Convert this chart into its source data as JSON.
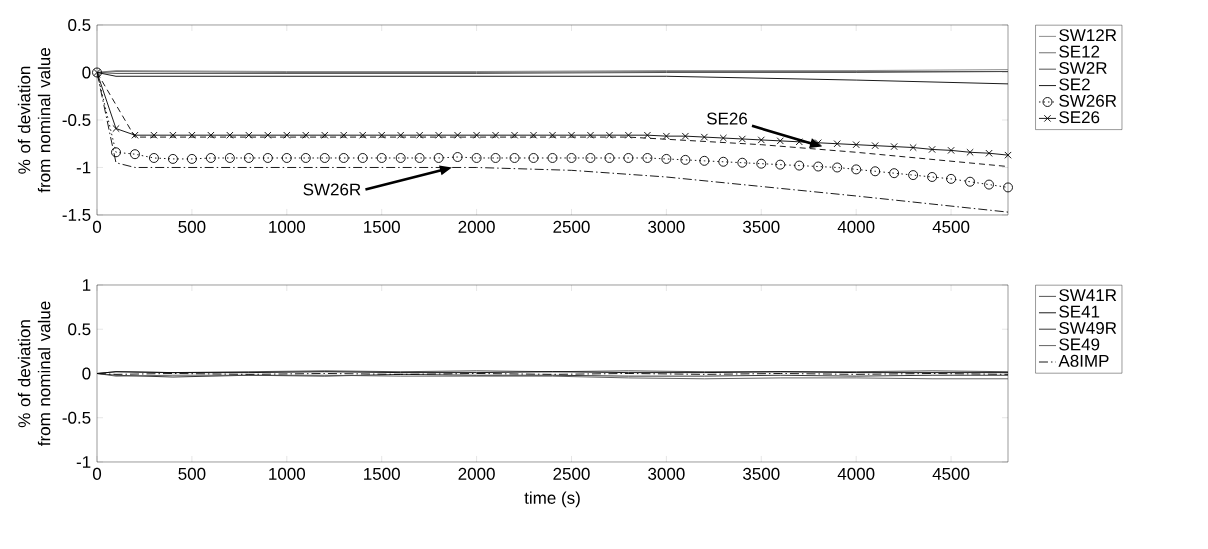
{
  "chart_data": [
    {
      "type": "line",
      "ylabel": "% of deviation from nominal value",
      "xlim": [
        0,
        4800
      ],
      "ylim": [
        -1.5,
        0.5
      ],
      "xticks": [
        0,
        500,
        1000,
        1500,
        2000,
        2500,
        3000,
        3500,
        4000,
        4500
      ],
      "yticks": [
        -1.5,
        -1,
        -0.5,
        0,
        0.5
      ],
      "legend": "right",
      "grid": false,
      "annotations": [
        "SW26R",
        "SE26"
      ],
      "series": [
        {
          "name": "SW12R",
          "color": "#808080",
          "line_style": "solid",
          "marker": "none",
          "x": [
            0,
            100,
            1000,
            2000,
            3000,
            4000,
            4800
          ],
          "values": [
            0,
            0.02,
            0.01,
            0.01,
            0.02,
            0.02,
            0.03
          ]
        },
        {
          "name": "SE12",
          "color": "#606060",
          "line_style": "solid",
          "marker": "none",
          "x": [
            0,
            100,
            1000,
            2000,
            3000,
            4000,
            4800
          ],
          "values": [
            0,
            0.01,
            0,
            0,
            0.01,
            0.01,
            0.01
          ]
        },
        {
          "name": "SW2R",
          "color": "#404040",
          "line_style": "solid",
          "marker": "none",
          "x": [
            0,
            100,
            1000,
            2000,
            3000,
            4000,
            4800
          ],
          "values": [
            0,
            -0.01,
            -0.01,
            -0.01,
            0,
            0,
            0.01
          ]
        },
        {
          "name": "SE2",
          "color": "#000000",
          "line_style": "solid",
          "marker": "none",
          "x": [
            0,
            100,
            1000,
            2000,
            3000,
            4000,
            4800
          ],
          "values": [
            0,
            -0.04,
            -0.04,
            -0.04,
            -0.04,
            -0.08,
            -0.12
          ]
        },
        {
          "name": "SW26R",
          "color": "#000000",
          "line_style": "dotted",
          "marker": "circle",
          "x": [
            0,
            100,
            200,
            300,
            400,
            500,
            600,
            700,
            800,
            900,
            1000,
            1100,
            1200,
            1300,
            1400,
            1500,
            1600,
            1700,
            1800,
            1900,
            2000,
            2100,
            2200,
            2300,
            2400,
            2500,
            2600,
            2700,
            2800,
            2900,
            3000,
            3100,
            3200,
            3300,
            3400,
            3500,
            3600,
            3700,
            3800,
            3900,
            4000,
            4100,
            4200,
            4300,
            4400,
            4500,
            4600,
            4700,
            4800
          ],
          "values": [
            0,
            -0.84,
            -0.86,
            -0.9,
            -0.91,
            -0.91,
            -0.9,
            -0.9,
            -0.9,
            -0.9,
            -0.9,
            -0.9,
            -0.9,
            -0.9,
            -0.9,
            -0.9,
            -0.9,
            -0.9,
            -0.9,
            -0.89,
            -0.9,
            -0.9,
            -0.9,
            -0.9,
            -0.9,
            -0.9,
            -0.9,
            -0.9,
            -0.9,
            -0.9,
            -0.91,
            -0.92,
            -0.93,
            -0.94,
            -0.95,
            -0.96,
            -0.97,
            -0.98,
            -0.99,
            -1.0,
            -1.02,
            -1.04,
            -1.06,
            -1.08,
            -1.1,
            -1.12,
            -1.15,
            -1.18,
            -1.21
          ]
        },
        {
          "name": "SE26",
          "color": "#000000",
          "line_style": "solid",
          "marker": "cross",
          "x": [
            0,
            100,
            200,
            300,
            400,
            500,
            600,
            700,
            800,
            900,
            1000,
            1100,
            1200,
            1300,
            1400,
            1500,
            1600,
            1700,
            1800,
            1900,
            2000,
            2100,
            2200,
            2300,
            2400,
            2500,
            2600,
            2700,
            2800,
            2900,
            3000,
            3100,
            3200,
            3300,
            3400,
            3500,
            3600,
            3700,
            3800,
            3900,
            4000,
            4100,
            4200,
            4300,
            4400,
            4500,
            4600,
            4700,
            4800
          ],
          "values": [
            0,
            -0.59,
            -0.66,
            -0.66,
            -0.66,
            -0.66,
            -0.66,
            -0.66,
            -0.66,
            -0.66,
            -0.66,
            -0.66,
            -0.66,
            -0.66,
            -0.66,
            -0.66,
            -0.66,
            -0.66,
            -0.66,
            -0.66,
            -0.66,
            -0.66,
            -0.66,
            -0.66,
            -0.66,
            -0.66,
            -0.66,
            -0.66,
            -0.66,
            -0.66,
            -0.67,
            -0.67,
            -0.68,
            -0.69,
            -0.7,
            -0.71,
            -0.72,
            -0.73,
            -0.74,
            -0.75,
            -0.76,
            -0.77,
            -0.78,
            -0.79,
            -0.81,
            -0.82,
            -0.84,
            -0.85,
            -0.87
          ]
        },
        {
          "color": "#000000",
          "line_style": "dashed",
          "marker": "none",
          "x": [
            0,
            200,
            1000,
            2000,
            2800,
            3500,
            4000,
            4800
          ],
          "values": [
            0,
            -0.68,
            -0.68,
            -0.68,
            -0.68,
            -0.76,
            -0.84,
            -0.99
          ]
        },
        {
          "color": "#000000",
          "line_style": "dashdot",
          "marker": "none",
          "x": [
            0,
            100,
            200,
            1000,
            2000,
            2500,
            3000,
            3500,
            4000,
            4800
          ],
          "values": [
            0,
            -0.95,
            -1.0,
            -1.0,
            -1.0,
            -1.03,
            -1.1,
            -1.2,
            -1.3,
            -1.47
          ]
        }
      ]
    },
    {
      "type": "line",
      "ylabel": "% of deviation from nominal value",
      "xlabel": "time (s)",
      "xlim": [
        0,
        4800
      ],
      "ylim": [
        -1,
        1
      ],
      "xticks": [
        0,
        500,
        1000,
        1500,
        2000,
        2500,
        3000,
        3500,
        4000,
        4500
      ],
      "yticks": [
        -1,
        -0.5,
        0,
        0.5,
        1
      ],
      "legend": "right",
      "grid": false,
      "series": [
        {
          "name": "SW41R",
          "color": "#404040",
          "line_style": "solid",
          "marker": "none",
          "x": [
            0,
            100,
            400,
            800,
            1200,
            1600,
            2000,
            2400,
            2800,
            3200,
            3600,
            4000,
            4400,
            4800
          ],
          "values": [
            0,
            0.02,
            0.01,
            0.02,
            0.03,
            0.02,
            0.03,
            0.02,
            0.03,
            0.02,
            0.02,
            0.02,
            0.03,
            0.02
          ]
        },
        {
          "name": "SE41",
          "color": "#000000",
          "line_style": "solid",
          "marker": "none",
          "x": [
            0,
            100,
            400,
            800,
            1200,
            1600,
            2000,
            2400,
            2800,
            3200,
            3600,
            4000,
            4400,
            4800
          ],
          "values": [
            0,
            0.02,
            0.01,
            0.01,
            0.02,
            0.01,
            0.01,
            0.02,
            0.01,
            0.01,
            0.02,
            0.01,
            0.01,
            0.01
          ]
        },
        {
          "name": "SW49R",
          "color": "#202020",
          "line_style": "solid",
          "marker": "none",
          "x": [
            0,
            100,
            400,
            800,
            1200,
            1600,
            2000,
            2400,
            2800,
            3200,
            3600,
            4000,
            4400,
            4800
          ],
          "values": [
            0,
            -0.02,
            -0.04,
            -0.02,
            -0.03,
            -0.01,
            -0.02,
            -0.02,
            -0.03,
            -0.03,
            -0.02,
            -0.03,
            -0.02,
            -0.02
          ]
        },
        {
          "name": "SE49",
          "color": "#505050",
          "line_style": "solid",
          "marker": "none",
          "x": [
            0,
            100,
            400,
            800,
            1200,
            1600,
            2000,
            2400,
            2800,
            3200,
            3600,
            4000,
            4400,
            4800
          ],
          "values": [
            0,
            -0.03,
            -0.02,
            -0.02,
            -0.02,
            -0.03,
            -0.03,
            -0.03,
            -0.05,
            -0.06,
            -0.05,
            -0.05,
            -0.06,
            -0.06
          ]
        },
        {
          "name": "A8IMP",
          "color": "#000000",
          "line_style": "dashdot",
          "marker": "none",
          "x": [
            0,
            100,
            400,
            800,
            1200,
            1600,
            2000,
            2400,
            2800,
            3200,
            3600,
            4000,
            4400,
            4800
          ],
          "values": [
            0,
            -0.01,
            0,
            -0.01,
            0,
            -0.01,
            0,
            -0.01,
            0,
            -0.01,
            0,
            -0.01,
            0,
            -0.01
          ]
        }
      ]
    }
  ]
}
